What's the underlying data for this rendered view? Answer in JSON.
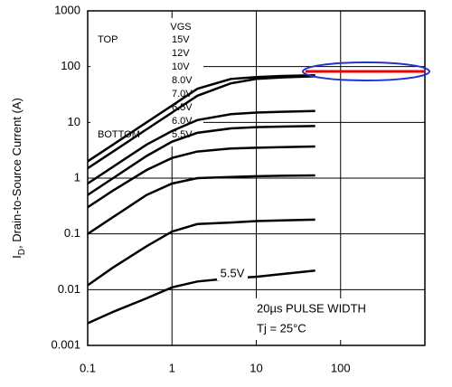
{
  "chart_data": {
    "type": "line",
    "ylabel": {
      "main": "I",
      "sub": "D",
      "rest": ", Drain-to-Source Current (A)"
    },
    "legend_title": "VGS",
    "legend_top": "TOP",
    "legend_bottom": "BOTTOM",
    "annotations": {
      "curve_label": "5.5V",
      "pulse": "20µs PULSE WIDTH",
      "temp": "Tj = 25°C"
    },
    "log_x": true,
    "log_y": true,
    "grid": true,
    "xlim": [
      0.1,
      1000
    ],
    "xticks": [
      0.1,
      1,
      10,
      100
    ],
    "ylim": [
      0.001,
      1000
    ],
    "yticks": [
      1000,
      100,
      10,
      1,
      0.1,
      0.01,
      0.001
    ],
    "x": [
      0.1,
      0.2,
      0.5,
      1,
      2,
      5,
      10,
      20,
      50
    ],
    "series": [
      {
        "name": "15V",
        "color": "#000000",
        "values": [
          2,
          4,
          10,
          20,
          40,
          60,
          65,
          68,
          70
        ]
      },
      {
        "name": "12V",
        "color": "#000000",
        "values": [
          1.5,
          3,
          7.5,
          15,
          30,
          50,
          60,
          64,
          67
        ]
      },
      {
        "name": "10V",
        "color": "#000000",
        "values": [
          0.8,
          1.6,
          4,
          7,
          11,
          14,
          15,
          15.5,
          16
        ]
      },
      {
        "name": "8.0V",
        "color": "#000000",
        "values": [
          0.5,
          1,
          2.5,
          4.5,
          6.5,
          7.8,
          8.2,
          8.4,
          8.6
        ]
      },
      {
        "name": "7.0V",
        "color": "#000000",
        "values": [
          0.3,
          0.6,
          1.4,
          2.3,
          3,
          3.4,
          3.5,
          3.6,
          3.7
        ]
      },
      {
        "name": "6.5V",
        "color": "#000000",
        "values": [
          0.1,
          0.2,
          0.5,
          0.8,
          1,
          1.05,
          1.08,
          1.1,
          1.12
        ]
      },
      {
        "name": "6.0V",
        "color": "#000000",
        "values": [
          0.012,
          0.025,
          0.06,
          0.11,
          0.15,
          0.16,
          0.17,
          0.175,
          0.18
        ]
      },
      {
        "name": "5.5V",
        "color": "#000000",
        "values": [
          0.0025,
          0.004,
          0.007,
          0.011,
          0.014,
          0.016,
          0.017,
          0.019,
          0.022
        ]
      }
    ]
  }
}
